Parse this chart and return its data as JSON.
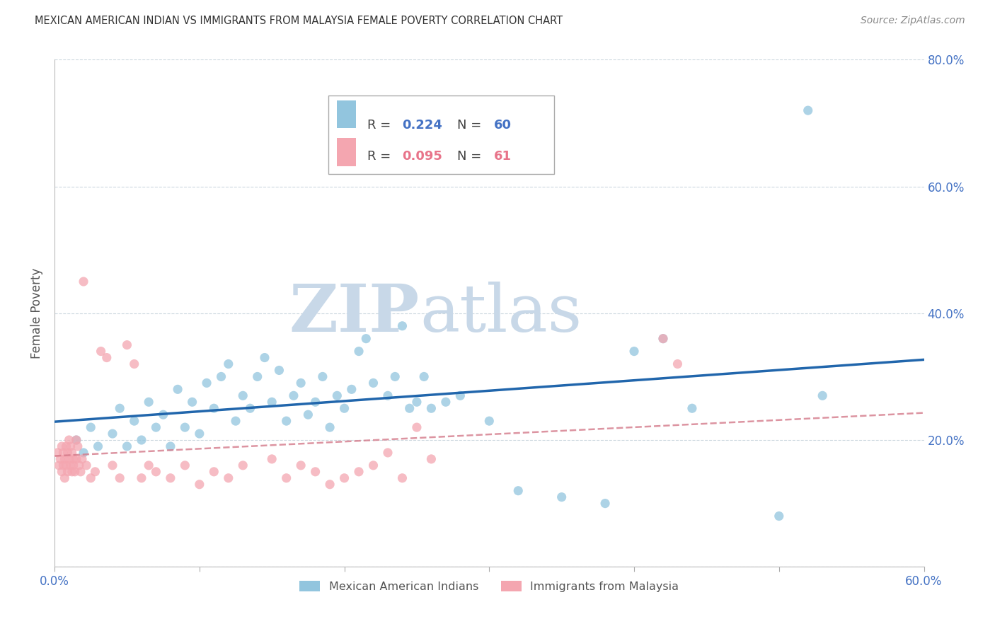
{
  "title": "MEXICAN AMERICAN INDIAN VS IMMIGRANTS FROM MALAYSIA FEMALE POVERTY CORRELATION CHART",
  "source": "Source: ZipAtlas.com",
  "ylabel": "Female Poverty",
  "xlim": [
    0.0,
    0.6
  ],
  "ylim": [
    0.0,
    0.8
  ],
  "xticks": [
    0.0,
    0.1,
    0.2,
    0.3,
    0.4,
    0.5,
    0.6
  ],
  "yticks": [
    0.0,
    0.2,
    0.4,
    0.6,
    0.8
  ],
  "xticklabels": [
    "0.0%",
    "",
    "",
    "",
    "",
    "",
    "60.0%"
  ],
  "yticklabels_right": [
    "",
    "20.0%",
    "40.0%",
    "60.0%",
    "80.0%"
  ],
  "label1": "Mexican American Indians",
  "label2": "Immigrants from Malaysia",
  "color1": "#92c5de",
  "color2": "#f4a6b0",
  "line_color1": "#2166ac",
  "line_color2": "#d47a8a",
  "watermark_zip": "ZIP",
  "watermark_atlas": "atlas",
  "watermark_color_zip": "#c8d8e8",
  "watermark_color_atlas": "#c8d8e8",
  "blue_scatter_x": [
    0.015,
    0.02,
    0.025,
    0.03,
    0.04,
    0.045,
    0.05,
    0.055,
    0.06,
    0.065,
    0.07,
    0.075,
    0.08,
    0.085,
    0.09,
    0.095,
    0.1,
    0.105,
    0.11,
    0.115,
    0.12,
    0.125,
    0.13,
    0.135,
    0.14,
    0.145,
    0.15,
    0.155,
    0.16,
    0.165,
    0.17,
    0.175,
    0.18,
    0.185,
    0.19,
    0.195,
    0.2,
    0.205,
    0.21,
    0.215,
    0.22,
    0.23,
    0.235,
    0.24,
    0.245,
    0.25,
    0.255,
    0.26,
    0.27,
    0.28,
    0.3,
    0.32,
    0.35,
    0.38,
    0.4,
    0.42,
    0.44,
    0.5,
    0.52,
    0.53
  ],
  "blue_scatter_y": [
    0.2,
    0.18,
    0.22,
    0.19,
    0.21,
    0.25,
    0.19,
    0.23,
    0.2,
    0.26,
    0.22,
    0.24,
    0.19,
    0.28,
    0.22,
    0.26,
    0.21,
    0.29,
    0.25,
    0.3,
    0.32,
    0.23,
    0.27,
    0.25,
    0.3,
    0.33,
    0.26,
    0.31,
    0.23,
    0.27,
    0.29,
    0.24,
    0.26,
    0.3,
    0.22,
    0.27,
    0.25,
    0.28,
    0.34,
    0.36,
    0.29,
    0.27,
    0.3,
    0.38,
    0.25,
    0.26,
    0.3,
    0.25,
    0.26,
    0.27,
    0.23,
    0.12,
    0.11,
    0.1,
    0.34,
    0.36,
    0.25,
    0.08,
    0.72,
    0.27
  ],
  "pink_scatter_x": [
    0.002,
    0.003,
    0.004,
    0.005,
    0.005,
    0.006,
    0.006,
    0.007,
    0.007,
    0.008,
    0.008,
    0.009,
    0.009,
    0.01,
    0.01,
    0.011,
    0.011,
    0.012,
    0.012,
    0.013,
    0.013,
    0.014,
    0.015,
    0.015,
    0.016,
    0.017,
    0.018,
    0.019,
    0.02,
    0.022,
    0.025,
    0.028,
    0.032,
    0.036,
    0.04,
    0.045,
    0.05,
    0.055,
    0.06,
    0.065,
    0.07,
    0.08,
    0.09,
    0.1,
    0.11,
    0.12,
    0.13,
    0.15,
    0.16,
    0.17,
    0.18,
    0.19,
    0.2,
    0.21,
    0.22,
    0.23,
    0.24,
    0.25,
    0.26,
    0.42,
    0.43
  ],
  "pink_scatter_y": [
    0.18,
    0.16,
    0.17,
    0.15,
    0.19,
    0.16,
    0.18,
    0.14,
    0.17,
    0.16,
    0.19,
    0.15,
    0.18,
    0.17,
    0.2,
    0.16,
    0.19,
    0.15,
    0.18,
    0.17,
    0.16,
    0.15,
    0.2,
    0.17,
    0.19,
    0.16,
    0.15,
    0.17,
    0.45,
    0.16,
    0.14,
    0.15,
    0.34,
    0.33,
    0.16,
    0.14,
    0.35,
    0.32,
    0.14,
    0.16,
    0.15,
    0.14,
    0.16,
    0.13,
    0.15,
    0.14,
    0.16,
    0.17,
    0.14,
    0.16,
    0.15,
    0.13,
    0.14,
    0.15,
    0.16,
    0.18,
    0.14,
    0.22,
    0.17,
    0.36,
    0.32
  ]
}
